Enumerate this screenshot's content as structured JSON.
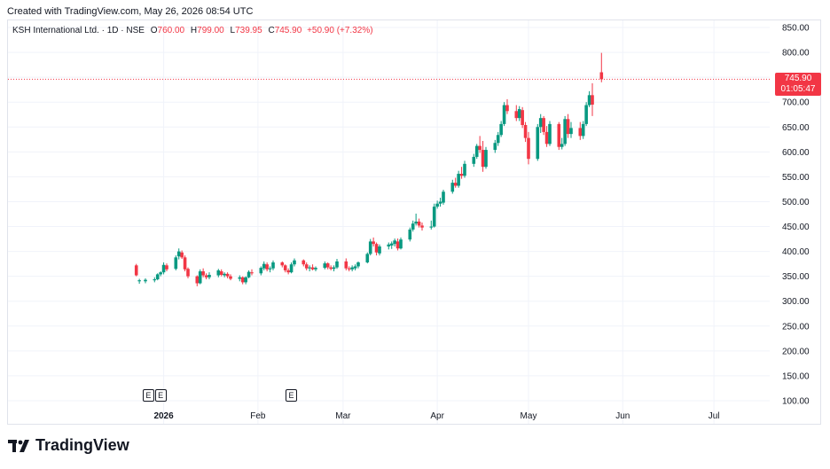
{
  "header": {
    "caption": "Created with TradingView.com, May 26, 2026 08:54 UTC"
  },
  "legend": {
    "symbol": "KSH International Ltd. · 1D · NSE",
    "open_label": "O",
    "open": "760.00",
    "high_label": "H",
    "high": "799.00",
    "low_label": "L",
    "low": "739.95",
    "close_label": "C",
    "close": "745.90",
    "change": "+50.90 (+7.32%)"
  },
  "price_tag": {
    "price": "745.90",
    "countdown": "01:05:47"
  },
  "earnings_markers": [
    {
      "label": "E",
      "date": "2025-12-27"
    },
    {
      "label": "E",
      "date": "2025-12-31"
    },
    {
      "label": "E",
      "date": "2026-02-12"
    }
  ],
  "brand": {
    "name": "TradingView"
  },
  "colors": {
    "up": "#089981",
    "down": "#f23645",
    "grid": "#f0f3fa"
  },
  "chart_data": {
    "type": "candlestick",
    "title": "KSH International Ltd. · 1D · NSE",
    "y_ticks": [
      "100.00",
      "150.00",
      "200.00",
      "250.00",
      "300.00",
      "350.00",
      "400.00",
      "450.00",
      "500.00",
      "550.00",
      "600.00",
      "650.00",
      "700.00",
      "750.00",
      "800.00",
      "850.00"
    ],
    "ylim": [
      100,
      850
    ],
    "x_ticks": [
      {
        "label": "2026",
        "date": "2026-01-01",
        "bold": true
      },
      {
        "label": "Feb",
        "date": "2026-02-01"
      },
      {
        "label": "Mar",
        "date": "2026-03-01"
      },
      {
        "label": "Apr",
        "date": "2026-04-01"
      },
      {
        "label": "May",
        "date": "2026-05-01"
      },
      {
        "label": "Jun",
        "date": "2026-06-01"
      },
      {
        "label": "Jul",
        "date": "2026-07-01"
      }
    ],
    "xlim": [
      "2025-12-19",
      "2026-07-17"
    ],
    "last_price": 745.9,
    "grid": true,
    "candles": [
      {
        "d": "2025-12-23",
        "o": 372,
        "h": 375,
        "l": 350,
        "c": 352
      },
      {
        "d": "2025-12-24",
        "o": 340,
        "h": 345,
        "l": 335,
        "c": 342
      },
      {
        "d": "2025-12-26",
        "o": 340,
        "h": 346,
        "l": 336,
        "c": 343
      },
      {
        "d": "2025-12-29",
        "o": 342,
        "h": 348,
        "l": 338,
        "c": 344
      },
      {
        "d": "2025-12-30",
        "o": 344,
        "h": 356,
        "l": 342,
        "c": 354
      },
      {
        "d": "2025-12-31",
        "o": 354,
        "h": 360,
        "l": 350,
        "c": 358
      },
      {
        "d": "2026-01-01",
        "o": 358,
        "h": 378,
        "l": 354,
        "c": 373
      },
      {
        "d": "2026-01-02",
        "o": 372,
        "h": 376,
        "l": 360,
        "c": 364
      },
      {
        "d": "2026-01-05",
        "o": 365,
        "h": 392,
        "l": 362,
        "c": 388
      },
      {
        "d": "2026-01-06",
        "o": 390,
        "h": 406,
        "l": 384,
        "c": 400
      },
      {
        "d": "2026-01-07",
        "o": 398,
        "h": 402,
        "l": 385,
        "c": 388
      },
      {
        "d": "2026-01-08",
        "o": 388,
        "h": 392,
        "l": 360,
        "c": 364
      },
      {
        "d": "2026-01-09",
        "o": 365,
        "h": 368,
        "l": 346,
        "c": 350
      },
      {
        "d": "2026-01-12",
        "o": 350,
        "h": 352,
        "l": 330,
        "c": 336
      },
      {
        "d": "2026-01-13",
        "o": 336,
        "h": 364,
        "l": 334,
        "c": 360
      },
      {
        "d": "2026-01-14",
        "o": 360,
        "h": 366,
        "l": 348,
        "c": 352
      },
      {
        "d": "2026-01-15",
        "o": 352,
        "h": 356,
        "l": 344,
        "c": 348
      },
      {
        "d": "2026-01-16",
        "o": 348,
        "h": 358,
        "l": 344,
        "c": 353
      },
      {
        "d": "2026-01-19",
        "o": 352,
        "h": 365,
        "l": 348,
        "c": 362
      },
      {
        "d": "2026-01-20",
        "o": 360,
        "h": 364,
        "l": 350,
        "c": 353
      },
      {
        "d": "2026-01-21",
        "o": 352,
        "h": 358,
        "l": 348,
        "c": 355
      },
      {
        "d": "2026-01-22",
        "o": 355,
        "h": 358,
        "l": 346,
        "c": 350
      },
      {
        "d": "2026-01-23",
        "o": 350,
        "h": 354,
        "l": 342,
        "c": 345
      },
      {
        "d": "2026-01-26",
        "o": 345,
        "h": 352,
        "l": 340,
        "c": 348
      },
      {
        "d": "2026-01-27",
        "o": 348,
        "h": 350,
        "l": 334,
        "c": 338
      },
      {
        "d": "2026-01-28",
        "o": 338,
        "h": 350,
        "l": 334,
        "c": 348
      },
      {
        "d": "2026-01-29",
        "o": 348,
        "h": 362,
        "l": 346,
        "c": 359
      },
      {
        "d": "2026-01-30",
        "o": 358,
        "h": 364,
        "l": 352,
        "c": 356
      },
      {
        "d": "2026-02-02",
        "o": 356,
        "h": 370,
        "l": 352,
        "c": 367
      },
      {
        "d": "2026-02-03",
        "o": 366,
        "h": 380,
        "l": 362,
        "c": 375
      },
      {
        "d": "2026-02-04",
        "o": 374,
        "h": 378,
        "l": 360,
        "c": 364
      },
      {
        "d": "2026-02-05",
        "o": 364,
        "h": 370,
        "l": 358,
        "c": 366
      },
      {
        "d": "2026-02-06",
        "o": 366,
        "h": 382,
        "l": 362,
        "c": 378
      },
      {
        "d": "2026-02-09",
        "o": 378,
        "h": 380,
        "l": 368,
        "c": 372
      },
      {
        "d": "2026-02-10",
        "o": 372,
        "h": 374,
        "l": 358,
        "c": 362
      },
      {
        "d": "2026-02-11",
        "o": 362,
        "h": 366,
        "l": 354,
        "c": 358
      },
      {
        "d": "2026-02-12",
        "o": 358,
        "h": 378,
        "l": 356,
        "c": 374
      },
      {
        "d": "2026-02-13",
        "o": 374,
        "h": 386,
        "l": 370,
        "c": 382
      },
      {
        "d": "2026-02-16",
        "o": 382,
        "h": 384,
        "l": 370,
        "c": 374
      },
      {
        "d": "2026-02-17",
        "o": 374,
        "h": 378,
        "l": 362,
        "c": 366
      },
      {
        "d": "2026-02-18",
        "o": 366,
        "h": 372,
        "l": 360,
        "c": 368
      },
      {
        "d": "2026-02-19",
        "o": 368,
        "h": 374,
        "l": 362,
        "c": 364
      },
      {
        "d": "2026-02-20",
        "o": 364,
        "h": 370,
        "l": 360,
        "c": 367
      },
      {
        "d": "2026-02-23",
        "o": 367,
        "h": 380,
        "l": 364,
        "c": 376
      },
      {
        "d": "2026-02-24",
        "o": 376,
        "h": 378,
        "l": 364,
        "c": 368
      },
      {
        "d": "2026-02-25",
        "o": 368,
        "h": 372,
        "l": 362,
        "c": 365
      },
      {
        "d": "2026-02-26",
        "o": 365,
        "h": 372,
        "l": 360,
        "c": 368
      },
      {
        "d": "2026-02-27",
        "o": 368,
        "h": 385,
        "l": 365,
        "c": 380
      },
      {
        "d": "2026-03-02",
        "o": 380,
        "h": 386,
        "l": 362,
        "c": 366
      },
      {
        "d": "2026-03-03",
        "o": 366,
        "h": 370,
        "l": 360,
        "c": 364
      },
      {
        "d": "2026-03-04",
        "o": 364,
        "h": 372,
        "l": 360,
        "c": 368
      },
      {
        "d": "2026-03-05",
        "o": 366,
        "h": 374,
        "l": 362,
        "c": 370
      },
      {
        "d": "2026-03-06",
        "o": 370,
        "h": 380,
        "l": 366,
        "c": 378
      },
      {
        "d": "2026-03-09",
        "o": 378,
        "h": 398,
        "l": 376,
        "c": 395
      },
      {
        "d": "2026-03-10",
        "o": 395,
        "h": 425,
        "l": 392,
        "c": 420
      },
      {
        "d": "2026-03-11",
        "o": 420,
        "h": 428,
        "l": 410,
        "c": 415
      },
      {
        "d": "2026-03-12",
        "o": 415,
        "h": 418,
        "l": 392,
        "c": 398
      },
      {
        "d": "2026-03-13",
        "o": 396,
        "h": 414,
        "l": 392,
        "c": 410
      },
      {
        "d": "2026-03-16",
        "o": 410,
        "h": 418,
        "l": 404,
        "c": 414
      },
      {
        "d": "2026-03-17",
        "o": 412,
        "h": 420,
        "l": 405,
        "c": 416
      },
      {
        "d": "2026-03-18",
        "o": 415,
        "h": 426,
        "l": 410,
        "c": 422
      },
      {
        "d": "2026-03-19",
        "o": 420,
        "h": 426,
        "l": 402,
        "c": 406
      },
      {
        "d": "2026-03-20",
        "o": 406,
        "h": 428,
        "l": 404,
        "c": 424
      },
      {
        "d": "2026-03-23",
        "o": 424,
        "h": 448,
        "l": 420,
        "c": 444
      },
      {
        "d": "2026-03-24",
        "o": 444,
        "h": 462,
        "l": 440,
        "c": 456
      },
      {
        "d": "2026-03-25",
        "o": 456,
        "h": 476,
        "l": 452,
        "c": 460
      },
      {
        "d": "2026-03-26",
        "o": 460,
        "h": 466,
        "l": 448,
        "c": 452
      },
      {
        "d": "2026-03-27",
        "o": 452,
        "h": 458,
        "l": 442,
        "c": 448
      },
      {
        "d": "2026-03-30",
        "o": 448,
        "h": 462,
        "l": 444,
        "c": 450
      },
      {
        "d": "2026-03-31",
        "o": 450,
        "h": 496,
        "l": 448,
        "c": 490
      },
      {
        "d": "2026-04-01",
        "o": 490,
        "h": 502,
        "l": 486,
        "c": 496
      },
      {
        "d": "2026-04-02",
        "o": 496,
        "h": 508,
        "l": 490,
        "c": 500
      },
      {
        "d": "2026-04-03",
        "o": 498,
        "h": 524,
        "l": 494,
        "c": 520
      },
      {
        "d": "2026-04-06",
        "o": 520,
        "h": 544,
        "l": 516,
        "c": 538
      },
      {
        "d": "2026-04-07",
        "o": 538,
        "h": 548,
        "l": 528,
        "c": 532
      },
      {
        "d": "2026-04-08",
        "o": 532,
        "h": 562,
        "l": 528,
        "c": 556
      },
      {
        "d": "2026-04-09",
        "o": 556,
        "h": 570,
        "l": 546,
        "c": 552
      },
      {
        "d": "2026-04-10",
        "o": 552,
        "h": 582,
        "l": 548,
        "c": 576
      },
      {
        "d": "2026-04-13",
        "o": 576,
        "h": 596,
        "l": 570,
        "c": 590
      },
      {
        "d": "2026-04-14",
        "o": 590,
        "h": 616,
        "l": 586,
        "c": 612
      },
      {
        "d": "2026-04-15",
        "o": 612,
        "h": 632,
        "l": 598,
        "c": 604
      },
      {
        "d": "2026-04-16",
        "o": 604,
        "h": 622,
        "l": 560,
        "c": 570
      },
      {
        "d": "2026-04-17",
        "o": 570,
        "h": 610,
        "l": 566,
        "c": 604
      },
      {
        "d": "2026-04-20",
        "o": 604,
        "h": 624,
        "l": 598,
        "c": 618
      },
      {
        "d": "2026-04-21",
        "o": 618,
        "h": 640,
        "l": 612,
        "c": 634
      },
      {
        "d": "2026-04-22",
        "o": 634,
        "h": 662,
        "l": 630,
        "c": 656
      },
      {
        "d": "2026-04-23",
        "o": 656,
        "h": 700,
        "l": 652,
        "c": 694
      },
      {
        "d": "2026-04-24",
        "o": 694,
        "h": 706,
        "l": 676,
        "c": 682
      },
      {
        "d": "2026-04-27",
        "o": 682,
        "h": 694,
        "l": 662,
        "c": 668
      },
      {
        "d": "2026-04-28",
        "o": 668,
        "h": 692,
        "l": 662,
        "c": 686
      },
      {
        "d": "2026-04-29",
        "o": 684,
        "h": 690,
        "l": 648,
        "c": 654
      },
      {
        "d": "2026-04-30",
        "o": 654,
        "h": 660,
        "l": 620,
        "c": 628
      },
      {
        "d": "2026-05-01",
        "o": 628,
        "h": 640,
        "l": 575,
        "c": 586
      },
      {
        "d": "2026-05-04",
        "o": 586,
        "h": 656,
        "l": 582,
        "c": 650
      },
      {
        "d": "2026-05-05",
        "o": 650,
        "h": 676,
        "l": 638,
        "c": 668
      },
      {
        "d": "2026-05-06",
        "o": 668,
        "h": 672,
        "l": 634,
        "c": 640
      },
      {
        "d": "2026-05-07",
        "o": 640,
        "h": 652,
        "l": 610,
        "c": 616
      },
      {
        "d": "2026-05-08",
        "o": 616,
        "h": 662,
        "l": 612,
        "c": 656
      },
      {
        "d": "2026-05-11",
        "o": 656,
        "h": 660,
        "l": 604,
        "c": 610
      },
      {
        "d": "2026-05-12",
        "o": 610,
        "h": 628,
        "l": 605,
        "c": 616
      },
      {
        "d": "2026-05-13",
        "o": 616,
        "h": 672,
        "l": 612,
        "c": 666
      },
      {
        "d": "2026-05-14",
        "o": 666,
        "h": 676,
        "l": 628,
        "c": 636
      },
      {
        "d": "2026-05-15",
        "o": 636,
        "h": 660,
        "l": 628,
        "c": 648
      },
      {
        "d": "2026-05-18",
        "o": 648,
        "h": 660,
        "l": 624,
        "c": 632
      },
      {
        "d": "2026-05-19",
        "o": 632,
        "h": 662,
        "l": 626,
        "c": 656
      },
      {
        "d": "2026-05-20",
        "o": 656,
        "h": 700,
        "l": 652,
        "c": 694
      },
      {
        "d": "2026-05-21",
        "o": 694,
        "h": 722,
        "l": 690,
        "c": 714
      },
      {
        "d": "2026-05-22",
        "o": 714,
        "h": 738,
        "l": 672,
        "c": 695
      },
      {
        "d": "2026-05-25",
        "o": 760,
        "h": 799,
        "l": 739.95,
        "c": 745.9
      }
    ]
  }
}
